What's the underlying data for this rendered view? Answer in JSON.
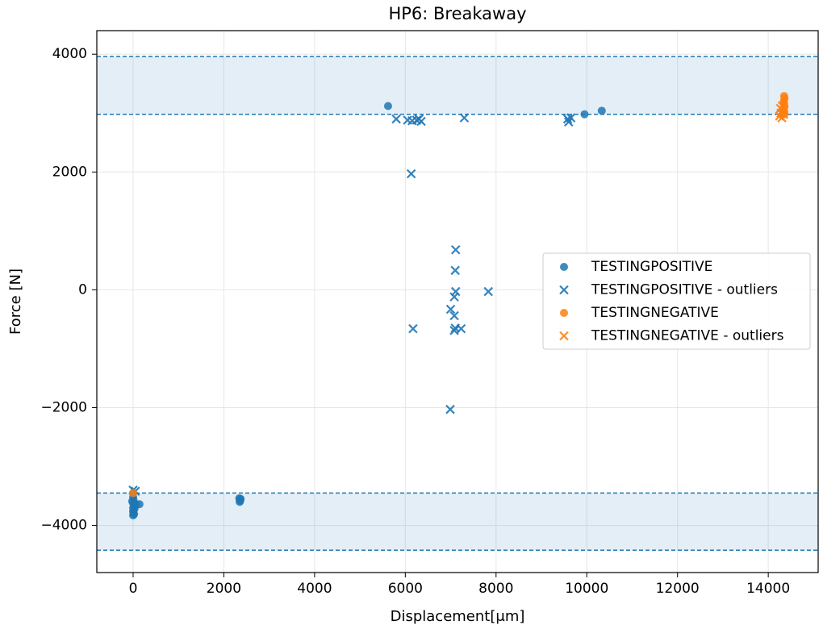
{
  "chart_data": {
    "type": "scatter",
    "title": "HP6: Breakaway",
    "xlabel": "Displacement[μm]",
    "ylabel": "Force [N]",
    "xlim": [
      -800,
      15100
    ],
    "ylim": [
      -4800,
      4400
    ],
    "xticks": [
      0,
      2000,
      4000,
      6000,
      8000,
      10000,
      12000,
      14000
    ],
    "yticks": [
      -4000,
      -2000,
      0,
      2000,
      4000
    ],
    "ytick_labels": [
      "−4000",
      "−2000",
      "0",
      "2000",
      "4000"
    ],
    "grid": true,
    "legend_position": "center-right",
    "colors": {
      "positive": "#1f77b4",
      "negative": "#ff7f0e",
      "band": "#1f77b4"
    },
    "bands": [
      {
        "y0": 2980,
        "y1": 3960
      },
      {
        "y0": -4420,
        "y1": -3450
      }
    ],
    "series": [
      {
        "name": "TESTINGPOSITIVE",
        "marker": "circle",
        "color": "#1f77b4",
        "points": [
          [
            5620,
            3120
          ],
          [
            9950,
            2980
          ],
          [
            10330,
            3040
          ],
          [
            0,
            -3450
          ],
          [
            0,
            -3520
          ],
          [
            10,
            -3570
          ],
          [
            0,
            -3620
          ],
          [
            20,
            -3650
          ],
          [
            0,
            -3700
          ],
          [
            30,
            -3720
          ],
          [
            0,
            -3760
          ],
          [
            10,
            -3790
          ],
          [
            20,
            -3810
          ],
          [
            0,
            -3830
          ],
          [
            40,
            -3680
          ],
          [
            60,
            -3640
          ],
          [
            140,
            -3640
          ],
          [
            -20,
            -3590
          ],
          [
            2340,
            -3540
          ],
          [
            2360,
            -3580
          ],
          [
            2350,
            -3600
          ],
          [
            2370,
            -3550
          ]
        ]
      },
      {
        "name": "TESTINGPOSITIVE - outliers",
        "marker": "x",
        "color": "#1f77b4",
        "points": [
          [
            5800,
            2900
          ],
          [
            6050,
            2880
          ],
          [
            6150,
            2870
          ],
          [
            6250,
            2880
          ],
          [
            6300,
            2900
          ],
          [
            6350,
            2860
          ],
          [
            7300,
            2920
          ],
          [
            9580,
            2900
          ],
          [
            9600,
            2850
          ],
          [
            9650,
            2920
          ],
          [
            6130,
            1970
          ],
          [
            7110,
            680
          ],
          [
            7100,
            330
          ],
          [
            7110,
            -30
          ],
          [
            7080,
            -120
          ],
          [
            7000,
            -330
          ],
          [
            7080,
            -440
          ],
          [
            7100,
            -650
          ],
          [
            7080,
            -690
          ],
          [
            7230,
            -660
          ],
          [
            6170,
            -660
          ],
          [
            7830,
            -30
          ],
          [
            6990,
            -2030
          ],
          [
            0,
            -3400
          ],
          [
            50,
            -3420
          ]
        ]
      },
      {
        "name": "TESTINGNEGATIVE",
        "marker": "circle",
        "color": "#ff7f0e",
        "points": [
          [
            14350,
            3290
          ],
          [
            14360,
            3250
          ],
          [
            14340,
            3200
          ],
          [
            14350,
            3160
          ],
          [
            14360,
            3110
          ],
          [
            14340,
            3070
          ],
          [
            14350,
            3030
          ],
          [
            14330,
            3000
          ],
          [
            14360,
            2980
          ],
          [
            0,
            -3450
          ]
        ]
      },
      {
        "name": "TESTINGNEGATIVE - outliers",
        "marker": "x",
        "color": "#ff7f0e",
        "points": [
          [
            14250,
            2950
          ],
          [
            14280,
            3000
          ],
          [
            14300,
            2920
          ],
          [
            14320,
            3050
          ],
          [
            14340,
            2980
          ],
          [
            14270,
            3080
          ],
          [
            14310,
            3120
          ]
        ]
      }
    ]
  }
}
